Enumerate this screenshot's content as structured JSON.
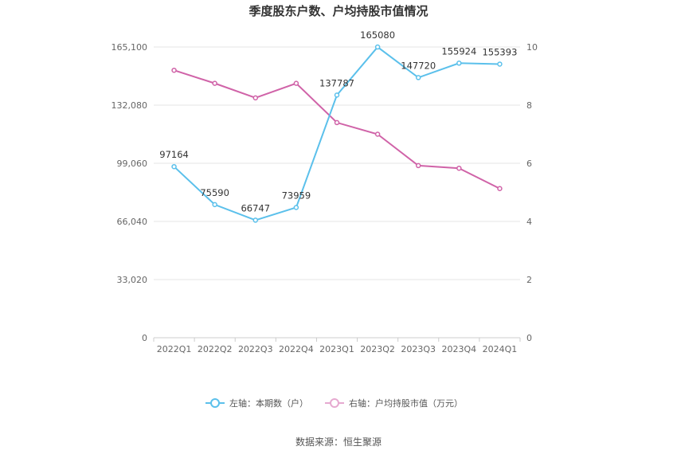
{
  "chart_data": {
    "type": "line",
    "title": "季度股东户数、户均持股市值情况",
    "categories": [
      "2022Q1",
      "2022Q2",
      "2022Q3",
      "2022Q4",
      "2023Q1",
      "2023Q2",
      "2023Q3",
      "2023Q4",
      "2024Q1"
    ],
    "left_axis": {
      "ticks": [
        "0",
        "33,020",
        "66,040",
        "99,060",
        "132,080",
        "165,100"
      ],
      "ylim": [
        0,
        165100
      ]
    },
    "right_axis": {
      "ticks": [
        "0",
        "2",
        "4",
        "6",
        "8",
        "10"
      ],
      "ylim": [
        0,
        10
      ]
    },
    "series": [
      {
        "name": "左轴：本期数（户）",
        "axis": "left",
        "color": "#5bc0eb",
        "values": [
          97164,
          75590,
          66747,
          73959,
          137787,
          165080,
          147720,
          155924,
          155393
        ],
        "labels": [
          "97164",
          "75590",
          "66747",
          "73959",
          "137787",
          "165080",
          "147720",
          "155924",
          "155393"
        ]
      },
      {
        "name": "右轴：户均持股市值（万元）",
        "axis": "right",
        "color": "#d063a8",
        "values": [
          9.2,
          8.75,
          8.25,
          8.75,
          7.4,
          7.0,
          5.92,
          5.83,
          5.13
        ]
      }
    ],
    "grid": true,
    "legend": "bottom",
    "source": "数据来源：恒生聚源"
  }
}
